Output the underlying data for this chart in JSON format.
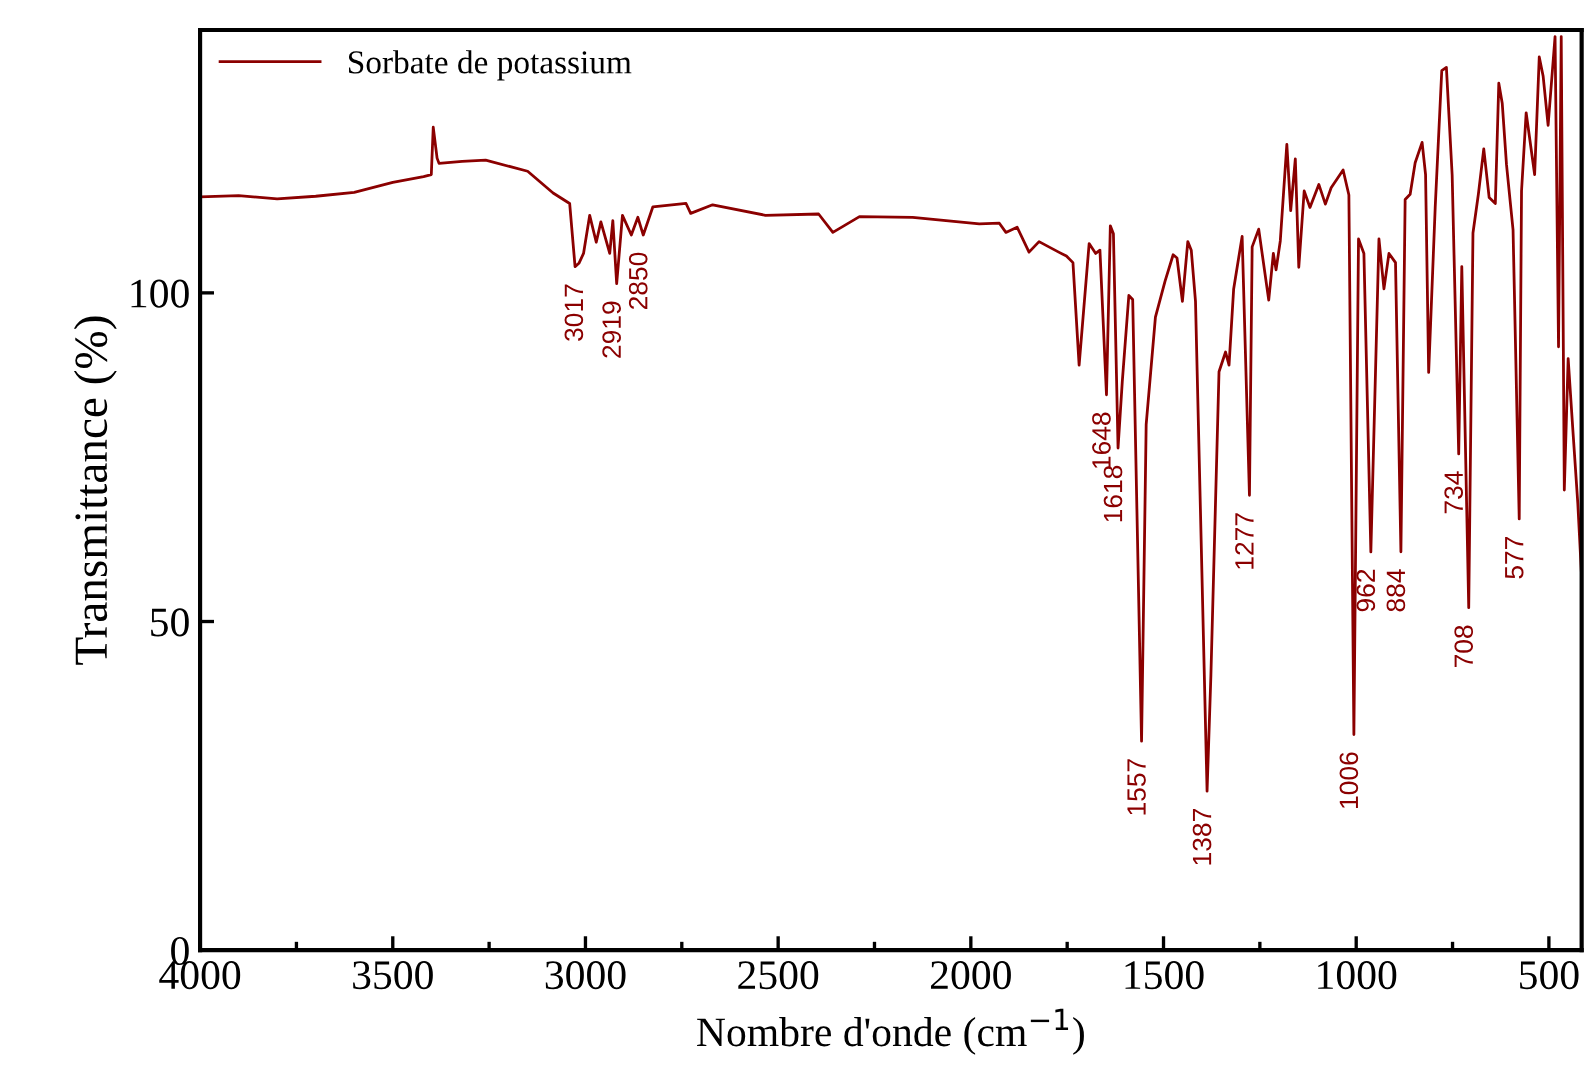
{
  "chart_data": {
    "type": "line",
    "xlabel": "Nombre d'onde (cm$^{−1}$)",
    "ylabel": "Transmittance (%)",
    "xlim": [
      4000,
      415
    ],
    "ylim": [
      0,
      140
    ],
    "xticks": [
      4000,
      {
        "value": 3750,
        "label": null
      },
      3500,
      {
        "value": 3250,
        "label": null
      },
      3000,
      {
        "value": 2750,
        "label": null
      },
      2500,
      {
        "value": 2250,
        "label": null
      },
      2000,
      {
        "value": 1750,
        "label": null
      },
      1500,
      {
        "value": 1250,
        "label": null
      },
      1000,
      {
        "value": 750,
        "label": null
      },
      500
    ],
    "yticks": [
      0,
      50,
      100
    ],
    "legend": "top left",
    "grid": false,
    "line_style": "solid",
    "marker": "none",
    "series": [
      {
        "name": "Sorbate de potassium",
        "color": "#8b0000",
        "x": [
          4000,
          3900,
          3800,
          3700,
          3600,
          3500,
          3420,
          3400,
          3395,
          3385,
          3380,
          3320,
          3259,
          3150,
          3084,
          3041,
          3027,
          3017,
          3005,
          2989,
          2972,
          2960,
          2937,
          2929,
          2919,
          2904,
          2881,
          2864,
          2850,
          2825,
          2739,
          2727,
          2670,
          2533,
          2395,
          2358,
          2289,
          2151,
          1978,
          1926,
          1909,
          1880,
          1849,
          1823,
          1772,
          1752,
          1735,
          1719,
          1693,
          1676,
          1665,
          1648,
          1638,
          1630,
          1618,
          1607,
          1590,
          1580,
          1557,
          1545,
          1521,
          1496,
          1475,
          1465,
          1451,
          1437,
          1428,
          1417,
          1387,
          1377,
          1356,
          1339,
          1330,
          1318,
          1296,
          1277,
          1270,
          1253,
          1227,
          1215,
          1208,
          1197,
          1180,
          1170,
          1158,
          1149,
          1135,
          1120,
          1097,
          1080,
          1065,
          1034,
          1019,
          1006,
          994,
          980,
          962,
          941,
          928,
          915,
          898,
          884,
          873,
          860,
          847,
          829,
          820,
          812,
          795,
          778,
          766,
          751,
          734,
          726,
          708,
          697,
          683,
          669,
          655,
          639,
          630,
          621,
          610,
          593,
          577,
          571,
          559,
          537,
          525,
          515,
          502,
          484,
          475,
          468,
          460,
          450,
          438,
          425,
          415
        ],
        "values": [
          114.6,
          114.8,
          114.3,
          114.7,
          115.3,
          116.8,
          117.7,
          118.0,
          125.2,
          120.5,
          119.7,
          120.0,
          120.2,
          118.5,
          115.2,
          113.6,
          104.0,
          104.5,
          106.0,
          111.8,
          107.7,
          110.8,
          106.0,
          111.0,
          101.4,
          111.8,
          108.8,
          111.5,
          108.8,
          113.1,
          113.6,
          112.1,
          113.4,
          111.8,
          112.0,
          109.2,
          111.6,
          111.5,
          110.5,
          110.6,
          109.2,
          110.0,
          106.2,
          107.8,
          106.2,
          105.6,
          104.6,
          89.0,
          107.5,
          106.0,
          106.5,
          84.5,
          110.2,
          109.0,
          76.4,
          86.5,
          99.6,
          99.0,
          31.8,
          80.0,
          96.3,
          101.8,
          105.8,
          105.3,
          98.7,
          107.8,
          106.5,
          98.7,
          24.2,
          41.9,
          88.0,
          91.0,
          89.0,
          100.6,
          108.6,
          69.2,
          107.0,
          109.7,
          98.9,
          106.0,
          103.5,
          107.9,
          122.6,
          112.5,
          120.4,
          103.9,
          115.5,
          113.0,
          116.5,
          113.5,
          116.0,
          118.7,
          114.9,
          32.8,
          108.2,
          106.0,
          60.6,
          108.2,
          100.6,
          106.0,
          104.6,
          60.6,
          114.2,
          115.0,
          119.8,
          122.9,
          118.0,
          87.9,
          113.0,
          133.8,
          134.3,
          117.9,
          75.5,
          104.0,
          52.1,
          109.1,
          115.0,
          121.9,
          114.5,
          113.6,
          131.9,
          128.8,
          119.5,
          109.6,
          65.6,
          115.5,
          127.4,
          118.0,
          135.9,
          133.0,
          125.5,
          139.0,
          91.8,
          139.0,
          70.0,
          90.0,
          79.3,
          68.0,
          56.7
        ]
      }
    ],
    "annotations": [
      {
        "text": "3017",
        "x": 3017,
        "y": 104.0
      },
      {
        "text": "2919",
        "x": 2919,
        "y": 101.4
      },
      {
        "text": "2850",
        "x": 2850,
        "y": 108.8
      },
      {
        "text": "1648",
        "x": 1648,
        "y": 84.5
      },
      {
        "text": "1618",
        "x": 1618,
        "y": 76.4
      },
      {
        "text": "1557",
        "x": 1557,
        "y": 31.8
      },
      {
        "text": "1387",
        "x": 1387,
        "y": 24.2
      },
      {
        "text": "1277",
        "x": 1277,
        "y": 69.2
      },
      {
        "text": "1006",
        "x": 1006,
        "y": 32.8
      },
      {
        "text": "962",
        "x": 962,
        "y": 60.6
      },
      {
        "text": "884",
        "x": 884,
        "y": 60.6
      },
      {
        "text": "734",
        "x": 734,
        "y": 75.5
      },
      {
        "text": "708",
        "x": 708,
        "y": 52.1
      },
      {
        "text": "577",
        "x": 577,
        "y": 65.6
      }
    ]
  }
}
